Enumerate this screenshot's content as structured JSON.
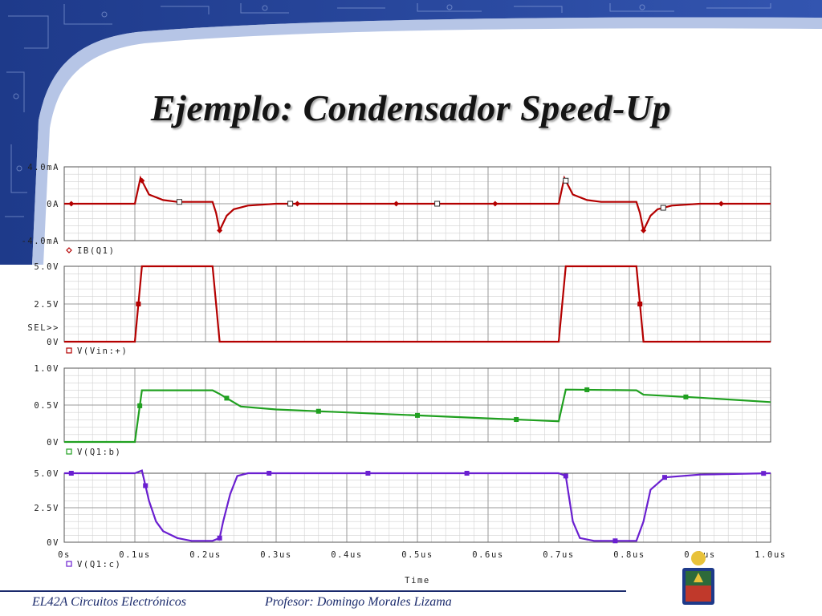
{
  "slide": {
    "title": "Ejemplo: Condensador Speed-Up",
    "footer_left": "EL42A Circuitos Electrónicos",
    "footer_right": "Profesor: Domingo Morales Lizama"
  },
  "colors": {
    "header_bg": "#1e3a8a",
    "ib_trace": "#b40000",
    "vin_trace": "#b40000",
    "vb_trace": "#20a020",
    "vc_trace": "#6a1fd0",
    "grid": "#9a9a9a",
    "footer": "#1a2a6c"
  },
  "chart_data": [
    {
      "type": "line",
      "series": [
        {
          "name": "IB(Q1)",
          "marker": "diamond"
        }
      ],
      "y_ticks": [
        "4.0mA",
        "0A",
        "-4.0mA"
      ],
      "ylim": [
        -4.0,
        4.0
      ],
      "x": [
        0,
        0.1,
        0.108,
        0.12,
        0.14,
        0.16,
        0.21,
        0.215,
        0.22,
        0.23,
        0.24,
        0.26,
        0.3,
        0.7,
        0.708,
        0.72,
        0.74,
        0.76,
        0.81,
        0.815,
        0.82,
        0.83,
        0.84,
        0.86,
        0.9,
        1.0
      ],
      "y": [
        0,
        0,
        2.8,
        1.0,
        0.4,
        0.2,
        0.2,
        -1.0,
        -2.9,
        -1.3,
        -0.6,
        -0.2,
        0,
        0,
        2.8,
        1.0,
        0.4,
        0.2,
        0.2,
        -1.0,
        -2.9,
        -1.3,
        -0.6,
        -0.2,
        0,
        0
      ]
    },
    {
      "type": "line",
      "series": [
        {
          "name": "V(Vin:+)",
          "marker": "square"
        }
      ],
      "y_ticks": [
        "5.0V",
        "2.5V",
        "0V"
      ],
      "selection_label": "SEL>>",
      "ylim": [
        0,
        5.0
      ],
      "x": [
        0,
        0.1,
        0.11,
        0.21,
        0.22,
        0.7,
        0.71,
        0.81,
        0.82,
        1.0
      ],
      "y": [
        0,
        0,
        5.0,
        5.0,
        0,
        0,
        5.0,
        5.0,
        0,
        0
      ]
    },
    {
      "type": "line",
      "series": [
        {
          "name": "V(Q1:b)",
          "marker": "square"
        }
      ],
      "y_ticks": [
        "1.0V",
        "0.5V",
        "0V"
      ],
      "ylim": [
        0,
        1.0
      ],
      "x": [
        0,
        0.1,
        0.11,
        0.21,
        0.22,
        0.25,
        0.3,
        0.4,
        0.5,
        0.6,
        0.7,
        0.71,
        0.81,
        0.82,
        0.9,
        1.0
      ],
      "y": [
        0,
        0,
        0.7,
        0.7,
        0.65,
        0.48,
        0.44,
        0.4,
        0.36,
        0.32,
        0.28,
        0.71,
        0.7,
        0.64,
        0.6,
        0.54
      ]
    },
    {
      "type": "line",
      "series": [
        {
          "name": "V(Q1:c)",
          "marker": "square"
        }
      ],
      "y_ticks": [
        "5.0V",
        "2.5V",
        "0V"
      ],
      "ylim": [
        0,
        5.0
      ],
      "x": [
        0,
        0.1,
        0.11,
        0.12,
        0.13,
        0.14,
        0.16,
        0.18,
        0.21,
        0.22,
        0.225,
        0.235,
        0.245,
        0.26,
        0.3,
        0.7,
        0.71,
        0.72,
        0.73,
        0.75,
        0.81,
        0.82,
        0.83,
        0.85,
        0.9,
        1.0
      ],
      "y": [
        5.0,
        5.0,
        5.2,
        3.0,
        1.5,
        0.8,
        0.3,
        0.1,
        0.1,
        0.3,
        1.5,
        3.5,
        4.8,
        5.0,
        5.0,
        5.0,
        4.8,
        1.5,
        0.3,
        0.1,
        0.1,
        1.5,
        3.8,
        4.7,
        4.9,
        5.0
      ]
    }
  ],
  "x_axis": {
    "label": "Time",
    "ticks": [
      "0s",
      "0.1us",
      "0.2us",
      "0.3us",
      "0.4us",
      "0.5us",
      "0.6us",
      "0.7us",
      "0.8us",
      "0.9us",
      "1.0us"
    ],
    "xlim": [
      0,
      1.0
    ]
  }
}
